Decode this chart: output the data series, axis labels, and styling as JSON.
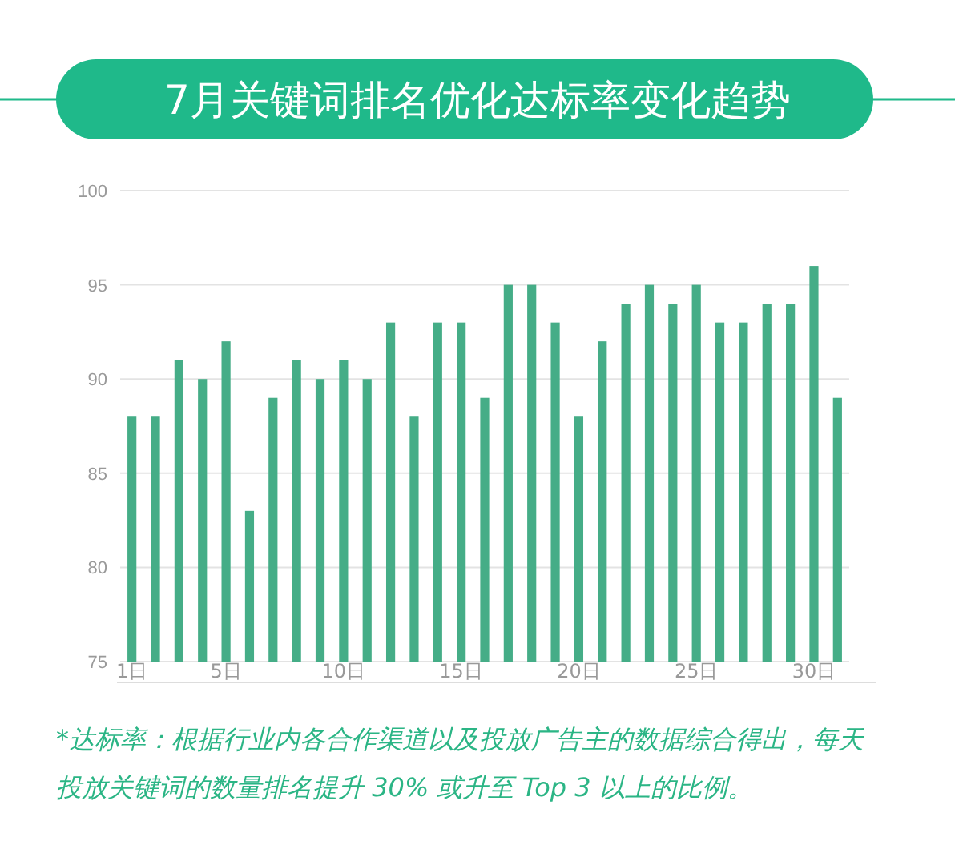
{
  "chart_data": {
    "type": "bar",
    "title": "7月关键词排名优化达标率变化趋势",
    "categories": [
      "1日",
      null,
      null,
      null,
      "5日",
      null,
      null,
      null,
      null,
      "10日",
      null,
      null,
      null,
      null,
      "15日",
      null,
      null,
      null,
      null,
      "20日",
      null,
      null,
      null,
      null,
      "25日",
      null,
      null,
      null,
      null,
      "30日",
      null
    ],
    "values": [
      88,
      88,
      91,
      90,
      92,
      83,
      89,
      91,
      90,
      91,
      90,
      93,
      88,
      93,
      93,
      89,
      95,
      95,
      93,
      88,
      92,
      94,
      95,
      94,
      95,
      93,
      93,
      94,
      94,
      96,
      89
    ],
    "color": "#45ad87",
    "ylim": [
      75,
      100
    ],
    "yticks": [
      75,
      80,
      85,
      90,
      95,
      100
    ],
    "grid": "y",
    "annotations": [
      "*达标率：根据行业内各合作渠道以及投放广告主的数据综合得出，每天投放关键词的数量排名提升 30% 或升至 Top 3 以上的比例。"
    ]
  }
}
